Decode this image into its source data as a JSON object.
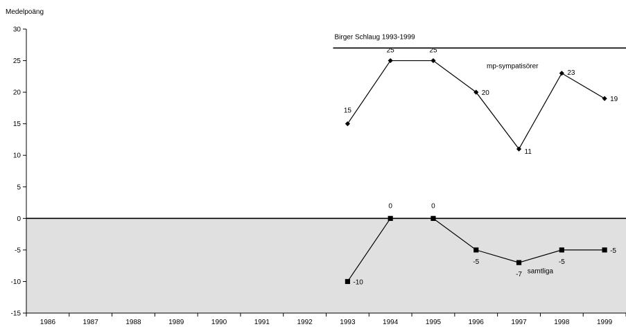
{
  "chart_data": {
    "type": "line",
    "ylabel": "Medelpoäng",
    "xlabel": "",
    "title": "",
    "annotation_title": "Birger Schlaug 1993-1999",
    "annotation_span": [
      "1993",
      "1999"
    ],
    "ylim": [
      -15,
      30
    ],
    "yticks": [
      -15,
      -10,
      -5,
      0,
      5,
      10,
      15,
      20,
      25,
      30
    ],
    "categories": [
      "1986",
      "1987",
      "1988",
      "1989",
      "1990",
      "1991",
      "1992",
      "1993",
      "1994",
      "1995",
      "1996",
      "1997",
      "1998",
      "1999"
    ],
    "negative_region_shaded": true,
    "shade_color": "#e0e0e0",
    "line_color": "#000000",
    "grid": false,
    "series": [
      {
        "name": "mp-sympatisörer",
        "marker": "diamond",
        "x": [
          "1993",
          "1994",
          "1995",
          "1996",
          "1997",
          "1998",
          "1999"
        ],
        "values": [
          15,
          25,
          25,
          20,
          11,
          23,
          19
        ]
      },
      {
        "name": "samtliga",
        "marker": "square",
        "x": [
          "1993",
          "1994",
          "1995",
          "1996",
          "1997",
          "1998",
          "1999"
        ],
        "values": [
          -10,
          0,
          0,
          -5,
          -7,
          -5,
          -5
        ]
      }
    ]
  }
}
